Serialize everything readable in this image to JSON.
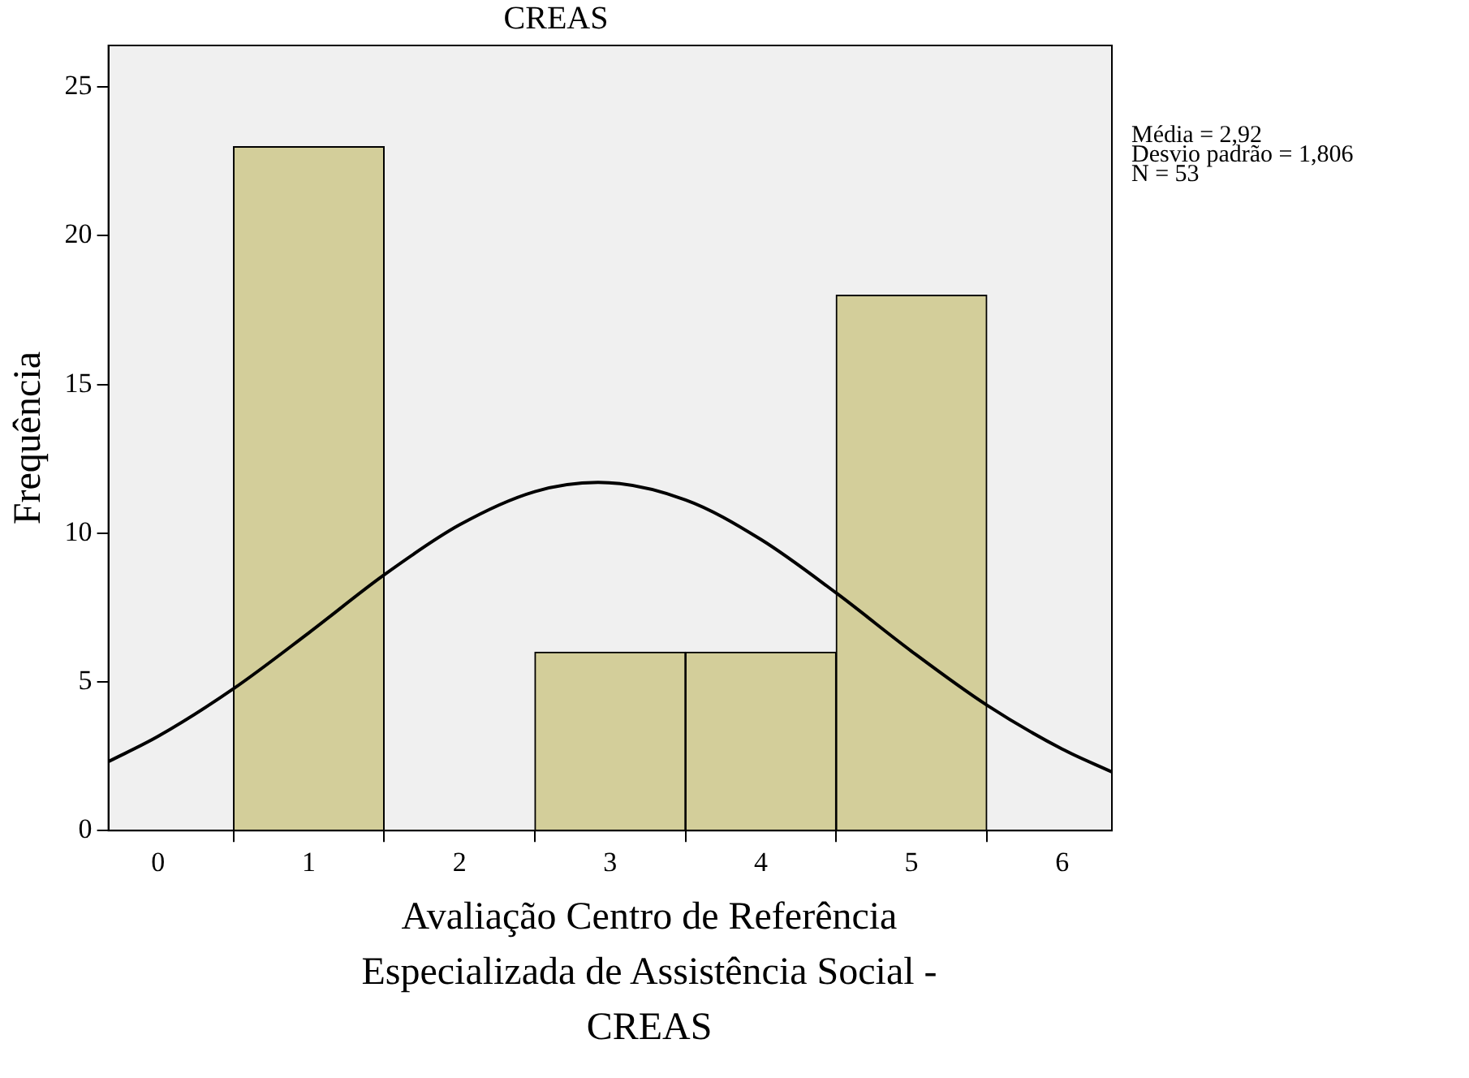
{
  "chart_data": {
    "type": "histogram",
    "title": "CREAS",
    "xlabel": "Avaliação Centro de Referência Especializada de Assistência Social - CREAS",
    "ylabel": "Frequência",
    "bins": [
      0.5,
      1.5,
      2.5,
      3.5,
      4.5,
      5.5
    ],
    "values": [
      23,
      0,
      6,
      6,
      18
    ],
    "color": "#d3ce9a",
    "series": [
      {
        "type": "line",
        "color": "#000000",
        "x": [
          -0.33,
          0,
          0.5,
          1,
          1.5,
          2,
          2.5,
          2.92,
          3.5,
          4,
          4.5,
          5,
          5.5,
          6,
          6.33
        ],
        "values": [
          2.32,
          3.17,
          4.77,
          6.65,
          8.6,
          10.28,
          11.4,
          11.71,
          11.12,
          9.79,
          7.99,
          6.03,
          4.22,
          2.74,
          1.97
        ]
      }
    ],
    "xlim": [
      -0.33,
      6.33
    ],
    "xticks": [
      0,
      1,
      2,
      3,
      4,
      5,
      6
    ],
    "ylim": [
      0,
      26.4
    ],
    "yticks": [
      0,
      5,
      10,
      15,
      20,
      25
    ],
    "grid": false,
    "legend": false,
    "annotations": [
      "Média = 2,92",
      "Desvio padrão = 1,806",
      "N = 53"
    ]
  }
}
